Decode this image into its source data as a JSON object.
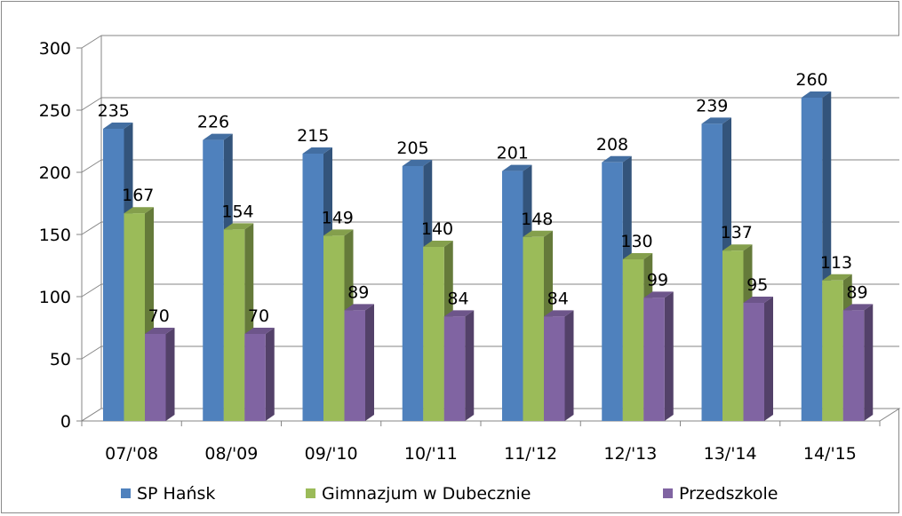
{
  "chart_data": {
    "type": "bar",
    "title": "",
    "xlabel": "",
    "ylabel": "",
    "ylim": [
      0,
      300
    ],
    "y_ticks": [
      0,
      50,
      100,
      150,
      200,
      250,
      300
    ],
    "gridlines": true,
    "three_d": true,
    "legend_position": "bottom",
    "categories": [
      "07/'08",
      "08/'09",
      "09/'10",
      "10/'11",
      "11/'12",
      "12/'13",
      "13/'14",
      "14/'15"
    ],
    "series": [
      {
        "name": "SP Hańsk",
        "color": "#4F81BD",
        "values": [
          235,
          226,
          215,
          205,
          201,
          208,
          239,
          260
        ]
      },
      {
        "name": "Gimnazjum w Dubecznie",
        "color": "#9BBB59",
        "values": [
          167,
          154,
          149,
          140,
          148,
          130,
          137,
          113
        ]
      },
      {
        "name": "Przedszkole",
        "color": "#8064A2",
        "values": [
          70,
          70,
          89,
          84,
          84,
          99,
          95,
          89
        ]
      }
    ]
  }
}
